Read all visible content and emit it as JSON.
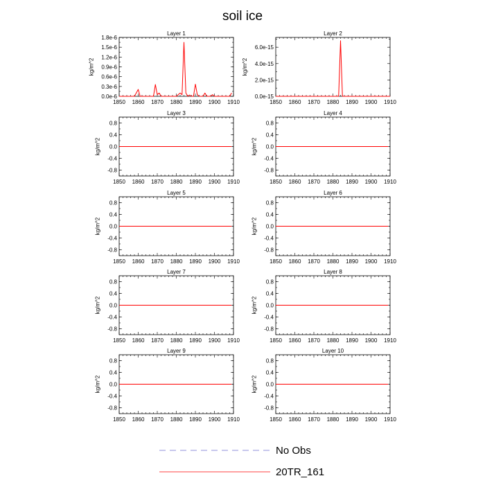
{
  "figure": {
    "title": "soil ice"
  },
  "legend": {
    "placement": "bottom-center",
    "entries": [
      {
        "label": "No Obs",
        "color": "#6b6bcf",
        "style": "dashed"
      },
      {
        "label": "20TR_161",
        "color": "#ff0000",
        "style": "solid"
      }
    ]
  },
  "chart_data": [
    {
      "type": "line",
      "title": "Layer 1",
      "ylabel": "kg/m^2",
      "xlim": [
        1850,
        1910
      ],
      "ylim": [
        0,
        1.8e-06
      ],
      "xticks": [
        1850,
        1860,
        1870,
        1880,
        1890,
        1900,
        1910
      ],
      "xtick_labels": [
        "1850",
        "1860",
        "1870",
        "1880",
        "1890",
        "1900",
        "1910"
      ],
      "yticks": [
        0,
        3e-07,
        6e-07,
        9e-07,
        1.2e-06,
        1.5e-06,
        1.8e-06
      ],
      "ytick_labels": [
        "0.0e-6",
        "0.3e-6",
        "0.6e-6",
        "0.9e-6",
        "1.2e-6",
        "1.5e-6",
        "1.8e-6"
      ],
      "y_axis_side": "left",
      "series": [
        {
          "name": "20TR_161",
          "color": "#ff0000",
          "x": [
            1850,
            1858,
            1860,
            1861,
            1868,
            1869,
            1870,
            1871,
            1872,
            1880,
            1881,
            1882,
            1883,
            1884,
            1885,
            1886,
            1887,
            1888,
            1889,
            1890,
            1891,
            1892,
            1894,
            1895,
            1896,
            1898,
            1899,
            1900,
            1908,
            1909
          ],
          "y": [
            0,
            0,
            2.1e-07,
            0,
            0,
            3.6e-07,
            5e-08,
            1e-07,
            0,
            0,
            5e-08,
            1e-07,
            5e-08,
            1.65e-06,
            1e-07,
            0,
            4e-08,
            0,
            0,
            3.7e-07,
            5e-08,
            0,
            0,
            1e-07,
            0,
            0,
            5e-08,
            0,
            0,
            1e-07
          ]
        }
      ]
    },
    {
      "type": "line",
      "title": "Layer 2",
      "ylabel": "kg/m^2",
      "xlim": [
        1850,
        1910
      ],
      "ylim": [
        0,
        7.2e-15
      ],
      "xticks": [
        1850,
        1860,
        1870,
        1880,
        1890,
        1900,
        1910
      ],
      "xtick_labels": [
        "1850",
        "1860",
        "1870",
        "1880",
        "1890",
        "1900",
        "1910"
      ],
      "yticks": [
        0,
        2e-15,
        4e-15,
        6e-15
      ],
      "ytick_labels": [
        "0.0e-15",
        "2.0e-15",
        "4.0e-15",
        "6.0e-15"
      ],
      "y_axis_side": "right",
      "series": [
        {
          "name": "20TR_161",
          "color": "#ff0000",
          "x": [
            1850,
            1883,
            1884,
            1885,
            1910
          ],
          "y": [
            0,
            0,
            6.8e-15,
            0,
            0
          ]
        }
      ]
    },
    {
      "type": "line",
      "title": "Layer 3",
      "ylabel": "kg/m^2",
      "xlim": [
        1850,
        1910
      ],
      "ylim": [
        -1,
        1
      ],
      "xticks": [
        1850,
        1860,
        1870,
        1880,
        1890,
        1900,
        1910
      ],
      "xtick_labels": [
        "1850",
        "1860",
        "1870",
        "1880",
        "1890",
        "1900",
        "1910"
      ],
      "yticks": [
        -0.8,
        -0.4,
        0,
        0.4,
        0.8
      ],
      "ytick_labels": [
        "-0.8",
        "-0.4",
        "0.0",
        "0.4",
        "0.8"
      ],
      "y_axis_side": "left",
      "series": [
        {
          "name": "20TR_161",
          "color": "#ff0000",
          "x": [
            1850,
            1909
          ],
          "y": [
            0,
            0
          ]
        }
      ]
    },
    {
      "type": "line",
      "title": "Layer 4",
      "ylabel": "kg/m^2",
      "xlim": [
        1850,
        1910
      ],
      "ylim": [
        -1,
        1
      ],
      "xticks": [
        1850,
        1860,
        1870,
        1880,
        1890,
        1900,
        1910
      ],
      "xtick_labels": [
        "1850",
        "1860",
        "1870",
        "1880",
        "1890",
        "1900",
        "1910"
      ],
      "yticks": [
        -0.8,
        -0.4,
        0,
        0.4,
        0.8
      ],
      "ytick_labels": [
        "-0.8",
        "-0.4",
        "0.0",
        "0.4",
        "0.8"
      ],
      "y_axis_side": "left",
      "series": [
        {
          "name": "20TR_161",
          "color": "#ff0000",
          "x": [
            1850,
            1909
          ],
          "y": [
            0,
            0
          ]
        }
      ]
    },
    {
      "type": "line",
      "title": "Layer 5",
      "ylabel": "kg/m^2",
      "xlim": [
        1850,
        1910
      ],
      "ylim": [
        -1,
        1
      ],
      "xticks": [
        1850,
        1860,
        1870,
        1880,
        1890,
        1900,
        1910
      ],
      "xtick_labels": [
        "1850",
        "1860",
        "1870",
        "1880",
        "1890",
        "1900",
        "1910"
      ],
      "yticks": [
        -0.8,
        -0.4,
        0,
        0.4,
        0.8
      ],
      "ytick_labels": [
        "-0.8",
        "-0.4",
        "0.0",
        "0.4",
        "0.8"
      ],
      "y_axis_side": "left",
      "series": [
        {
          "name": "20TR_161",
          "color": "#ff0000",
          "x": [
            1850,
            1909
          ],
          "y": [
            0,
            0
          ]
        }
      ]
    },
    {
      "type": "line",
      "title": "Layer 6",
      "ylabel": "kg/m^2",
      "xlim": [
        1850,
        1910
      ],
      "ylim": [
        -1,
        1
      ],
      "xticks": [
        1850,
        1860,
        1870,
        1880,
        1890,
        1900,
        1910
      ],
      "xtick_labels": [
        "1850",
        "1860",
        "1870",
        "1880",
        "1890",
        "1900",
        "1910"
      ],
      "yticks": [
        -0.8,
        -0.4,
        0,
        0.4,
        0.8
      ],
      "ytick_labels": [
        "-0.8",
        "-0.4",
        "0.0",
        "0.4",
        "0.8"
      ],
      "y_axis_side": "left",
      "series": [
        {
          "name": "20TR_161",
          "color": "#ff0000",
          "x": [
            1850,
            1909
          ],
          "y": [
            0,
            0
          ]
        }
      ]
    },
    {
      "type": "line",
      "title": "Layer 7",
      "ylabel": "kg/m^2",
      "xlim": [
        1850,
        1910
      ],
      "ylim": [
        -1,
        1
      ],
      "xticks": [
        1850,
        1860,
        1870,
        1880,
        1890,
        1900,
        1910
      ],
      "xtick_labels": [
        "1850",
        "1860",
        "1870",
        "1880",
        "1890",
        "1900",
        "1910"
      ],
      "yticks": [
        -0.8,
        -0.4,
        0,
        0.4,
        0.8
      ],
      "ytick_labels": [
        "-0.8",
        "-0.4",
        "0.0",
        "0.4",
        "0.8"
      ],
      "y_axis_side": "left",
      "series": [
        {
          "name": "20TR_161",
          "color": "#ff0000",
          "x": [
            1850,
            1909
          ],
          "y": [
            0,
            0
          ]
        }
      ]
    },
    {
      "type": "line",
      "title": "Layer 8",
      "ylabel": "kg/m^2",
      "xlim": [
        1850,
        1910
      ],
      "ylim": [
        -1,
        1
      ],
      "xticks": [
        1850,
        1860,
        1870,
        1880,
        1890,
        1900,
        1910
      ],
      "xtick_labels": [
        "1850",
        "1860",
        "1870",
        "1880",
        "1890",
        "1900",
        "1910"
      ],
      "yticks": [
        -0.8,
        -0.4,
        0,
        0.4,
        0.8
      ],
      "ytick_labels": [
        "-0.8",
        "-0.4",
        "0.0",
        "0.4",
        "0.8"
      ],
      "y_axis_side": "left",
      "series": [
        {
          "name": "20TR_161",
          "color": "#ff0000",
          "x": [
            1850,
            1909
          ],
          "y": [
            0,
            0
          ]
        }
      ]
    },
    {
      "type": "line",
      "title": "Layer 9",
      "ylabel": "kg/m^2",
      "xlim": [
        1850,
        1910
      ],
      "ylim": [
        -1,
        1
      ],
      "xticks": [
        1850,
        1860,
        1870,
        1880,
        1890,
        1900,
        1910
      ],
      "xtick_labels": [
        "1850",
        "1860",
        "1870",
        "1880",
        "1890",
        "1900",
        "1910"
      ],
      "yticks": [
        -0.8,
        -0.4,
        0,
        0.4,
        0.8
      ],
      "ytick_labels": [
        "-0.8",
        "-0.4",
        "0.0",
        "0.4",
        "0.8"
      ],
      "y_axis_side": "left",
      "series": [
        {
          "name": "20TR_161",
          "color": "#ff0000",
          "x": [
            1850,
            1909
          ],
          "y": [
            0,
            0
          ]
        }
      ]
    },
    {
      "type": "line",
      "title": "Layer 10",
      "ylabel": "kg/m^2",
      "xlim": [
        1850,
        1910
      ],
      "ylim": [
        -1,
        1
      ],
      "xticks": [
        1850,
        1860,
        1870,
        1880,
        1890,
        1900,
        1910
      ],
      "xtick_labels": [
        "1850",
        "1860",
        "1870",
        "1880",
        "1890",
        "1900",
        "1910"
      ],
      "yticks": [
        -0.8,
        -0.4,
        0,
        0.4,
        0.8
      ],
      "ytick_labels": [
        "-0.8",
        "-0.4",
        "0.0",
        "0.4",
        "0.8"
      ],
      "y_axis_side": "left",
      "series": [
        {
          "name": "20TR_161",
          "color": "#ff0000",
          "x": [
            1850,
            1909
          ],
          "y": [
            0,
            0
          ]
        }
      ]
    }
  ]
}
